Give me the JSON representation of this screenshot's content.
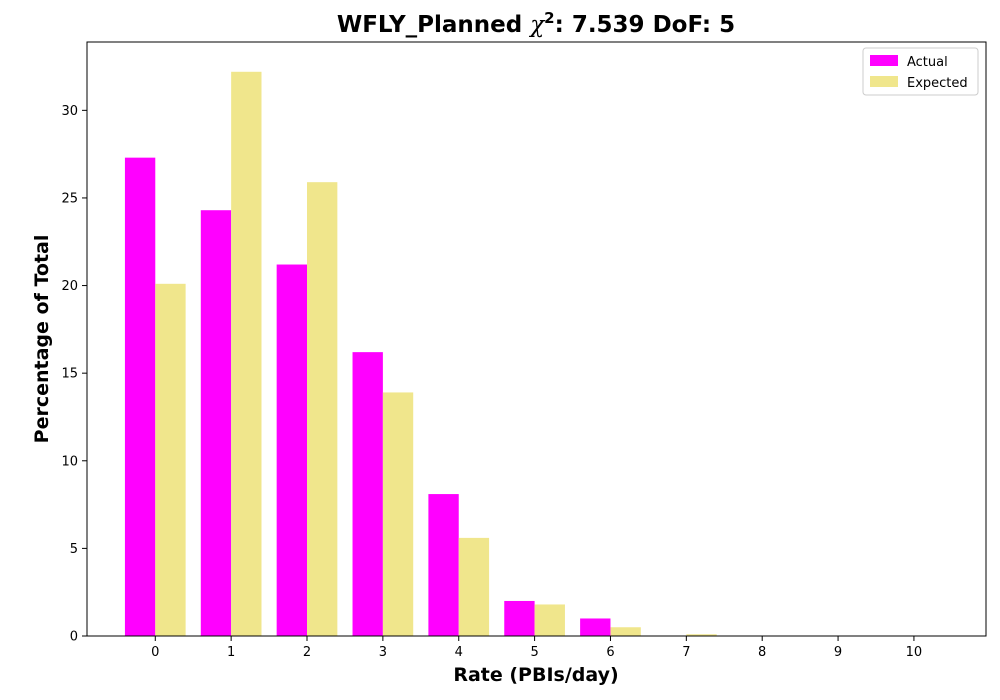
{
  "chart_data": {
    "type": "bar",
    "title": {
      "prefix": "WFLY_Planned ",
      "chi": "χ",
      "sup": "2",
      "suffix": ": 7.539 DoF: 5"
    },
    "xlabel": "Rate (PBIs/day)",
    "ylabel": "Percentage of Total",
    "categories": [
      "0",
      "1",
      "2",
      "3",
      "4",
      "5",
      "6",
      "7",
      "8",
      "9",
      "10"
    ],
    "xlim": [
      -0.9,
      10.95
    ],
    "ylim": [
      0,
      33.9
    ],
    "yticks": [
      0,
      5,
      10,
      15,
      20,
      25,
      30
    ],
    "series": [
      {
        "name": "Actual",
        "color": "#ff00ff",
        "values": [
          27.3,
          24.3,
          21.2,
          16.2,
          8.1,
          2.0,
          1.0,
          0,
          0,
          0,
          0
        ]
      },
      {
        "name": "Expected",
        "color": "#f0e68c",
        "values": [
          20.1,
          32.2,
          25.9,
          13.9,
          5.6,
          1.8,
          0.5,
          0.1,
          0.02,
          0,
          0
        ]
      }
    ],
    "grid": false,
    "legend_position": "top-right"
  }
}
